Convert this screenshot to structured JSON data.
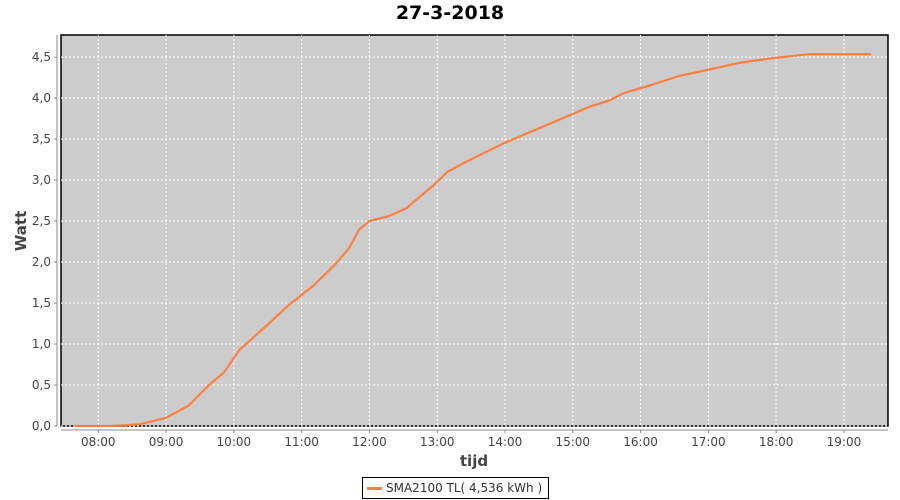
{
  "chart_data": {
    "type": "line",
    "title": "27-3-2018",
    "xlabel": "tijd",
    "ylabel": "Watt",
    "xlim": [
      "07:27",
      "19:39"
    ],
    "ylim": [
      0,
      4.77
    ],
    "x_ticks": [
      "08:00",
      "09:00",
      "10:00",
      "11:00",
      "12:00",
      "13:00",
      "14:00",
      "15:00",
      "16:00",
      "17:00",
      "18:00",
      "19:00"
    ],
    "y_ticks": [
      "0,0",
      "0,5",
      "1,0",
      "1,5",
      "2,0",
      "2,5",
      "3,0",
      "3,5",
      "4,0",
      "4,5"
    ],
    "grid": true,
    "legend_position": "bottom",
    "background": "#cccccc",
    "series": [
      {
        "name": "SMA2100 TL( 4,536 kWh )",
        "color": "#ff7f3f",
        "x": [
          "07:39",
          "08:10",
          "08:36",
          "09:00",
          "09:20",
          "09:38",
          "09:51",
          "10:05",
          "10:27",
          "10:49",
          "11:11",
          "11:29",
          "11:42",
          "11:51",
          "12:00",
          "12:17",
          "12:33",
          "12:44",
          "12:57",
          "13:09",
          "13:28",
          "13:59",
          "14:30",
          "14:52",
          "15:14",
          "15:32",
          "15:45",
          "16:07",
          "16:34",
          "17:01",
          "17:27",
          "17:58",
          "18:29",
          "19:24"
        ],
        "y": [
          0,
          0,
          0.02,
          0.1,
          0.25,
          0.5,
          0.65,
          0.93,
          1.2,
          1.48,
          1.72,
          1.96,
          2.17,
          2.4,
          2.5,
          2.56,
          2.66,
          2.79,
          2.94,
          3.1,
          3.24,
          3.45,
          3.63,
          3.76,
          3.89,
          3.97,
          4.06,
          4.15,
          4.27,
          4.35,
          4.43,
          4.49,
          4.536,
          4.536
        ]
      }
    ]
  }
}
